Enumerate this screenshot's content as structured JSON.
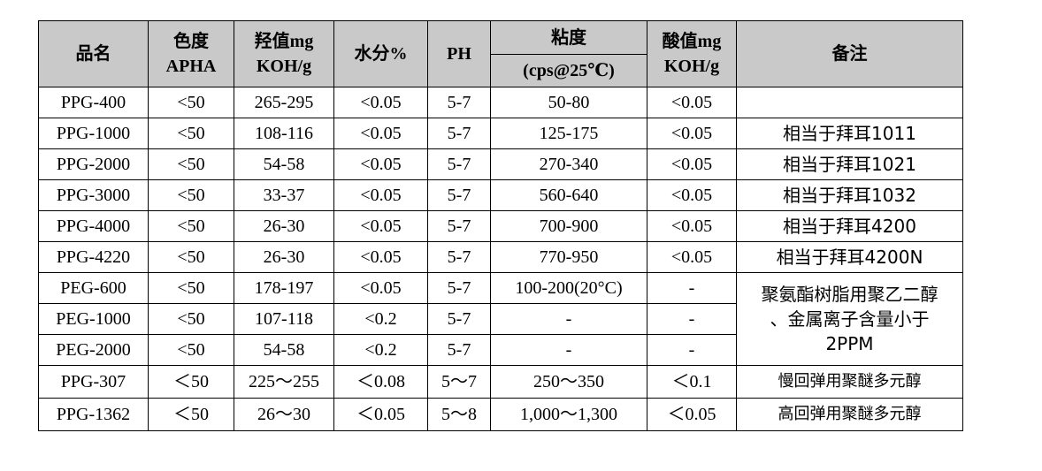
{
  "headers": {
    "name": "品名",
    "color": [
      "色度",
      "APHA"
    ],
    "hydroxyl": [
      "羟值mg",
      "KOH/g"
    ],
    "water": "水分%",
    "ph": "PH",
    "viscosity": "粘度",
    "viscosity_unit": "(cps@25℃)",
    "acid": [
      "酸值mg",
      "KOH/g"
    ],
    "notes": "备注"
  },
  "rows": [
    {
      "name": "PPG-400",
      "color": "<50",
      "hydroxyl": "265-295",
      "water": "<0.05",
      "ph": "5-7",
      "viscosity": "50-80",
      "acid": "<0.05",
      "notes": ""
    },
    {
      "name": "PPG-1000",
      "color": "<50",
      "hydroxyl": "108-116",
      "water": "<0.05",
      "ph": "5-7",
      "viscosity": "125-175",
      "acid": "<0.05",
      "notes": "相当于拜耳1011"
    },
    {
      "name": "PPG-2000",
      "color": "<50",
      "hydroxyl": "54-58",
      "water": "<0.05",
      "ph": "5-7",
      "viscosity": "270-340",
      "acid": "<0.05",
      "notes": "相当于拜耳1021"
    },
    {
      "name": "PPG-3000",
      "color": "<50",
      "hydroxyl": "33-37",
      "water": "<0.05",
      "ph": "5-7",
      "viscosity": "560-640",
      "acid": "<0.05",
      "notes": "相当于拜耳1032"
    },
    {
      "name": "PPG-4000",
      "color": "<50",
      "hydroxyl": "26-30",
      "water": "<0.05",
      "ph": "5-7",
      "viscosity": "700-900",
      "acid": "<0.05",
      "notes": "相当于拜耳4200"
    },
    {
      "name": "PPG-4220",
      "color": "<50",
      "hydroxyl": "26-30",
      "water": "<0.05",
      "ph": "5-7",
      "viscosity": "770-950",
      "acid": "<0.05",
      "notes": "相当于拜耳4200N"
    },
    {
      "name": "PEG-600",
      "color": "<50",
      "hydroxyl": "178-197",
      "water": "<0.05",
      "ph": "5-7",
      "viscosity": "100-200(20°C)",
      "acid": "-"
    },
    {
      "name": "PEG-1000",
      "color": "<50",
      "hydroxyl": "107-118",
      "water": "<0.2",
      "ph": "5-7",
      "viscosity": "-",
      "acid": "-"
    },
    {
      "name": "PEG-2000",
      "color": "<50",
      "hydroxyl": "54-58",
      "water": "<0.2",
      "ph": "5-7",
      "viscosity": "-",
      "acid": "-"
    },
    {
      "name": "PPG-307",
      "color": "＜50",
      "hydroxyl": "225～255",
      "water": "＜0.08",
      "ph": "5～7",
      "viscosity": "250～350",
      "acid": "＜0.1",
      "notes": "慢回弹用聚醚多元醇"
    },
    {
      "name": "PPG-1362",
      "color": "＜50",
      "hydroxyl": "26～30",
      "water": "＜0.05",
      "ph": "5～8",
      "viscosity": "1,000～1,300",
      "acid": "＜0.05",
      "notes": "高回弹用聚醚多元醇"
    }
  ],
  "peg_notes": [
    "聚氨酯树脂用聚乙二醇",
    "、金属离子含量小于",
    "2PPM"
  ]
}
